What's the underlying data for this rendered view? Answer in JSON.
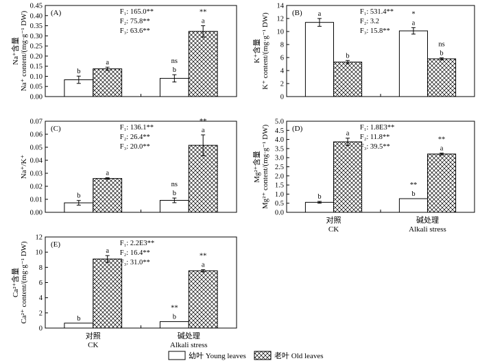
{
  "legend": {
    "young": "幼叶 Young leaves",
    "old": "老叶 Old leaves"
  },
  "x_groups": {
    "ck_cn": "对照",
    "ck_en": "CK",
    "alkali_cn": "碱处理",
    "alkali_en": "Alkali stress"
  },
  "chart_data": [
    {
      "id": "A",
      "type": "bar",
      "panel_label": "(A)",
      "ylabel_cn": "Na⁺含量",
      "ylabel_en": "Na⁺ content/(mg·g⁻¹ DW)",
      "ylim": [
        0,
        0.45
      ],
      "yticks": [
        0,
        0.05,
        0.1,
        0.15,
        0.2,
        0.25,
        0.3,
        0.35,
        0.4,
        0.45
      ],
      "tick_decimals": 2,
      "categories": [
        "对照 CK",
        "碱处理 Alkali stress"
      ],
      "series": [
        {
          "name": "幼叶 Young leaves",
          "values": [
            0.083,
            0.09
          ],
          "errors": [
            0.018,
            0.018
          ],
          "letters": [
            "b",
            "b"
          ],
          "marks": [
            "",
            "ns"
          ]
        },
        {
          "name": "老叶 Old leaves",
          "values": [
            0.137,
            0.322
          ],
          "errors": [
            0.008,
            0.028
          ],
          "letters": [
            "a",
            "a"
          ],
          "marks": [
            "",
            "**"
          ]
        }
      ],
      "f_stats": [
        "F₁: 165.0**",
        "F₂: 75.8**",
        "F₃: 63.6**"
      ],
      "show_xlabels": false
    },
    {
      "id": "B",
      "type": "bar",
      "panel_label": "(B)",
      "ylabel_cn": "K⁺含量",
      "ylabel_en": "K⁺ content/(mg·g⁻¹ DW)",
      "ylim": [
        0,
        14
      ],
      "yticks": [
        0,
        2,
        4,
        6,
        8,
        10,
        12,
        14
      ],
      "tick_decimals": 0,
      "categories": [
        "对照 CK",
        "碱处理 Alkali stress"
      ],
      "series": [
        {
          "name": "幼叶 Young leaves",
          "values": [
            11.4,
            10.1
          ],
          "errors": [
            0.6,
            0.5
          ],
          "letters": [
            "a",
            "a"
          ],
          "marks": [
            "",
            "*"
          ]
        },
        {
          "name": "老叶 Old leaves",
          "values": [
            5.3,
            5.8
          ],
          "errors": [
            0.25,
            0.15
          ],
          "letters": [
            "b",
            "b"
          ],
          "marks": [
            "",
            "ns"
          ]
        }
      ],
      "f_stats": [
        "F₁: 531.4**",
        "F₂: 3.2",
        "F₃: 15.8**"
      ],
      "show_xlabels": false
    },
    {
      "id": "C",
      "type": "bar",
      "panel_label": "(C)",
      "ylabel_cn": "",
      "ylabel_en": "Na⁺/K⁺",
      "ylim": [
        0,
        0.07
      ],
      "yticks": [
        0,
        0.01,
        0.02,
        0.03,
        0.04,
        0.05,
        0.06,
        0.07
      ],
      "tick_decimals": 2,
      "categories": [
        "对照 CK",
        "碱处理 Alkali stress"
      ],
      "series": [
        {
          "name": "幼叶 Young leaves",
          "values": [
            0.0073,
            0.0092
          ],
          "errors": [
            0.0018,
            0.0018
          ],
          "letters": [
            "b",
            "b"
          ],
          "marks": [
            "",
            "ns"
          ]
        },
        {
          "name": "老叶 Old leaves",
          "values": [
            0.026,
            0.0515
          ],
          "errors": [
            0.0006,
            0.008
          ],
          "letters": [
            "a",
            "a"
          ],
          "marks": [
            "",
            "**"
          ]
        }
      ],
      "f_stats": [
        "F₁: 136.1**",
        "F₂: 26.4**",
        "F₃: 20.0**"
      ],
      "show_xlabels": false
    },
    {
      "id": "D",
      "type": "bar",
      "panel_label": "(D)",
      "ylabel_cn": "Mg²⁺含量",
      "ylabel_en": "Mg²⁺ content/(mg·g⁻¹ DW)",
      "ylim": [
        0,
        5.0
      ],
      "yticks": [
        0,
        0.5,
        1.0,
        1.5,
        2.0,
        2.5,
        3.0,
        3.5,
        4.0,
        4.5,
        5.0
      ],
      "tick_decimals": 1,
      "categories": [
        "对照 CK",
        "碱处理 Alkali stress"
      ],
      "series": [
        {
          "name": "幼叶 Young leaves",
          "values": [
            0.55,
            0.75
          ],
          "errors": [
            0.05,
            0.0
          ],
          "letters": [
            "b",
            "b"
          ],
          "marks": [
            "",
            "**"
          ]
        },
        {
          "name": "老叶 Old leaves",
          "values": [
            3.87,
            3.2
          ],
          "errors": [
            0.2,
            0.05
          ],
          "letters": [
            "a",
            "a"
          ],
          "marks": [
            "",
            "**"
          ]
        }
      ],
      "f_stats": [
        "F₁: 1.8E3**",
        "F₂: 11.8**",
        "F₃: 39.5**"
      ],
      "show_xlabels": true
    },
    {
      "id": "E",
      "type": "bar",
      "panel_label": "(E)",
      "ylabel_cn": "Ca²⁺含量",
      "ylabel_en": "Ca²⁺ content/(mg·g⁻¹ DW)",
      "ylim": [
        0,
        12
      ],
      "yticks": [
        0,
        2,
        4,
        6,
        8,
        10,
        12
      ],
      "tick_decimals": 0,
      "categories": [
        "对照 CK",
        "碱处理 Alkali stress"
      ],
      "series": [
        {
          "name": "幼叶 Young leaves",
          "values": [
            0.65,
            0.85
          ],
          "errors": [
            0.0,
            0.0
          ],
          "letters": [
            "b",
            "b"
          ],
          "marks": [
            "",
            "**"
          ]
        },
        {
          "name": "老叶 Old leaves",
          "values": [
            9.1,
            7.55
          ],
          "errors": [
            0.45,
            0.15
          ],
          "letters": [
            "a",
            "a"
          ],
          "marks": [
            "",
            "**"
          ]
        }
      ],
      "f_stats": [
        "F₁: 2.2E3**",
        "F₂: 16.4**",
        "F₃: 31.0**"
      ],
      "show_xlabels": true
    }
  ]
}
